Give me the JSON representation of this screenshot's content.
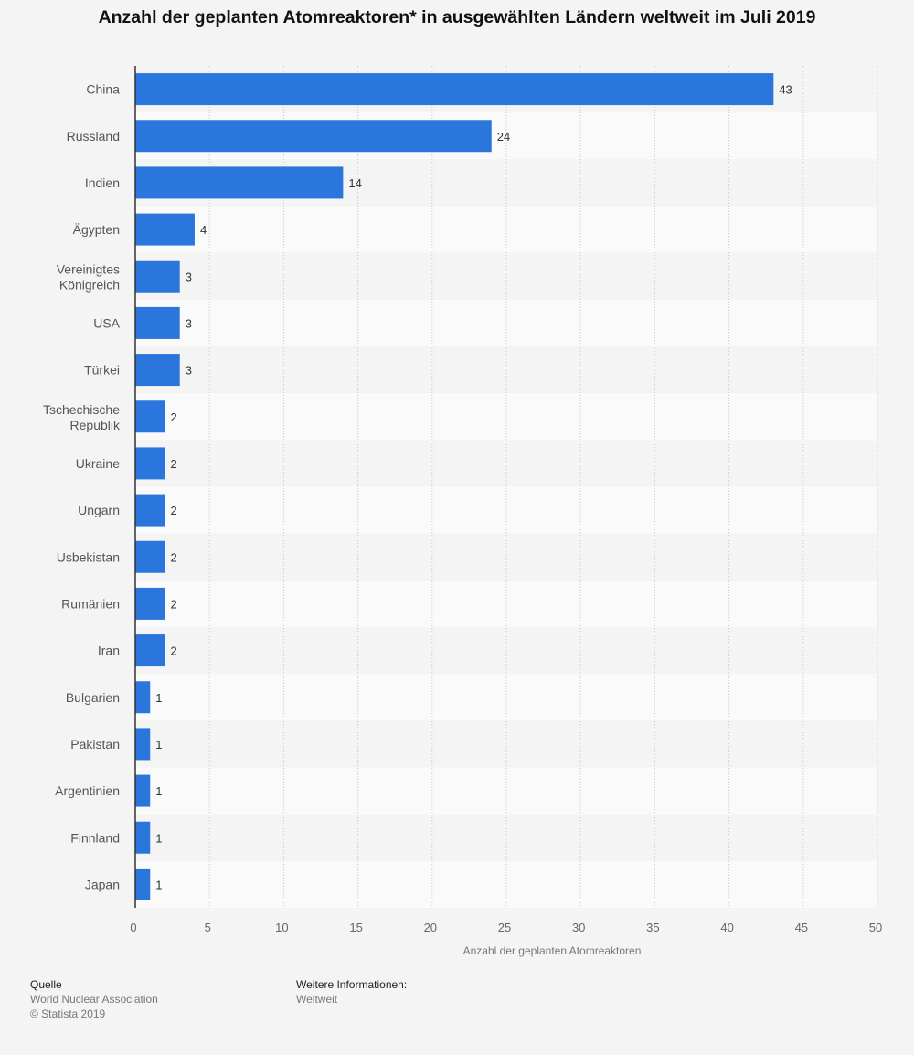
{
  "title": "Anzahl der geplanten Atomreaktoren* in ausgewählten Ländern weltweit im Juli 2019",
  "chart_data": {
    "type": "bar",
    "orientation": "horizontal",
    "categories": [
      "China",
      "Russland",
      "Indien",
      "Ägypten",
      "Vereinigtes Königreich",
      "USA",
      "Türkei",
      "Tschechische Republik",
      "Ukraine",
      "Ungarn",
      "Usbekistan",
      "Rumänien",
      "Iran",
      "Bulgarien",
      "Pakistan",
      "Argentinien",
      "Finnland",
      "Japan"
    ],
    "values": [
      43,
      24,
      14,
      4,
      3,
      3,
      3,
      2,
      2,
      2,
      2,
      2,
      2,
      1,
      1,
      1,
      1,
      1
    ],
    "xlabel": "Anzahl der geplanten Atomreaktoren",
    "ylabel": "",
    "xlim": [
      0,
      50
    ],
    "xticks": [
      0,
      5,
      10,
      15,
      20,
      25,
      30,
      35,
      40,
      45,
      50
    ],
    "grid": true,
    "bar_color": "#2a76dd",
    "show_values": true
  },
  "footer": {
    "source_heading": "Quelle",
    "source_name": "World Nuclear Association",
    "copyright": "© Statista 2019",
    "info_heading": "Weitere Informationen:",
    "info_text": "Weltweit"
  }
}
